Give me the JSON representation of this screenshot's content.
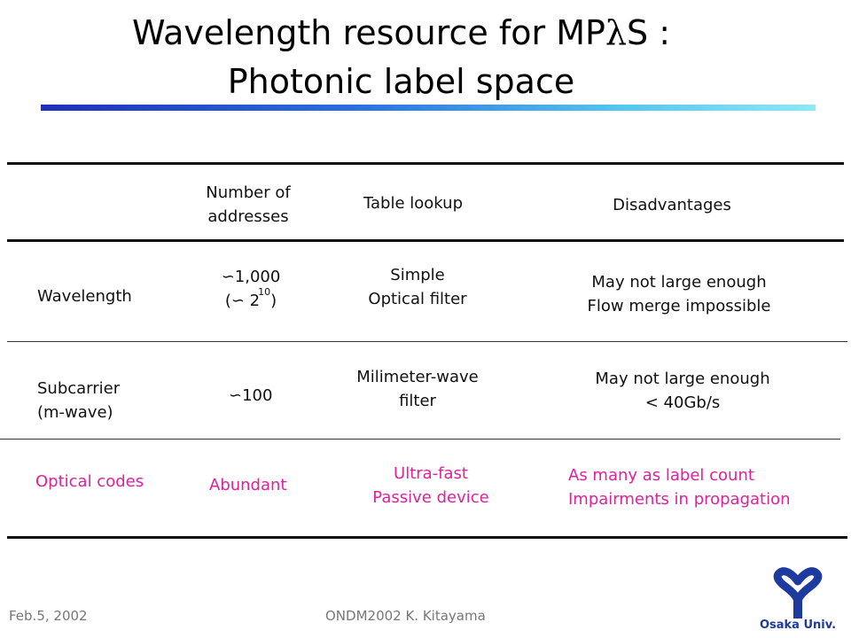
{
  "title": {
    "line1_prefix": "Wavelength resource for MP",
    "lambda": "λ",
    "line1_suffix": "S :",
    "line2": "Photonic label space"
  },
  "table": {
    "headers": {
      "addresses": "Number of addresses",
      "lookup": "Table lookup",
      "disadvantages": "Disadvantages"
    },
    "rows": [
      {
        "name": "Wavelength",
        "addresses_line1": "∽1,000",
        "addresses_line2_prefix": "(∽ 2",
        "addresses_line2_sup": "10",
        "addresses_line2_suffix": ")",
        "lookup": [
          "Simple",
          "Optical filter"
        ],
        "disadvantages": [
          "May not large enough",
          "Flow merge impossible"
        ]
      },
      {
        "name": [
          "Subcarrier",
          "(m-wave)"
        ],
        "addresses": "∽100",
        "lookup": [
          "Milimeter-wave",
          "filter"
        ],
        "disadvantages": [
          "May not large enough",
          "< 40Gb/s"
        ]
      },
      {
        "name": "Optical codes",
        "addresses": "Abundant",
        "lookup": [
          "Ultra-fast",
          "Passive device"
        ],
        "disadvantages": [
          "As many as label count",
          "Impairments in propagation"
        ]
      }
    ]
  },
  "footer": {
    "date": "Feb.5, 2002",
    "conference": "ONDM2002  K. Kitayama",
    "logo_text": "Osaka Univ."
  },
  "colors": {
    "highlight": "#e0219b",
    "logo": "#1d3a9e",
    "title_bar_start": "#1f2fb8",
    "title_bar_end": "#8ee8f6"
  }
}
